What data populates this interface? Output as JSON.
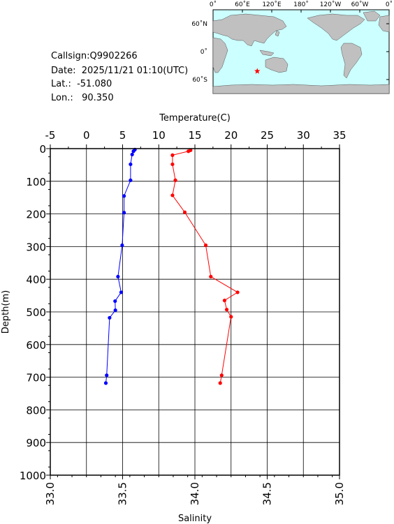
{
  "station": {
    "callsign": "Callsign:Q9902266",
    "date": "Date:  2025/11/21 01:10(UTC)",
    "lat": "Lat.:  -51.080",
    "lon": "Lon.:   90.350"
  },
  "map": {
    "top_labels": [
      "0˚",
      "60˚E",
      "120˚E",
      "180˚",
      "120˚W",
      "60˚W",
      "0˚"
    ],
    "lat_labels": [
      "60˚N",
      "0˚",
      "60˚S"
    ],
    "marker_lon": 90.35,
    "marker_lat": -51.08,
    "ocean_color": "#ccffff",
    "land_color": "#c0c0c0",
    "marker_color": "#ff0000"
  },
  "chart_data": [
    {
      "type": "line",
      "series_name": "Temperature",
      "xlabel": "Temperature(C)",
      "ylabel": "Depth(m)",
      "xlim": [
        -5,
        35
      ],
      "ylim": [
        0,
        1000
      ],
      "color": "#ff0000",
      "x_ticks": [
        "-5",
        "0",
        "5",
        "10",
        "15",
        "20",
        "25",
        "30",
        "35"
      ],
      "y_ticks": [
        "0",
        "100",
        "200",
        "300",
        "400",
        "500",
        "600",
        "700",
        "800",
        "900",
        "1000"
      ],
      "points": [
        {
          "x": 14.4,
          "y": 5
        },
        {
          "x": 14.1,
          "y": 8
        },
        {
          "x": 11.9,
          "y": 20
        },
        {
          "x": 11.9,
          "y": 48
        },
        {
          "x": 12.3,
          "y": 97
        },
        {
          "x": 11.9,
          "y": 143
        },
        {
          "x": 13.6,
          "y": 195
        },
        {
          "x": 16.5,
          "y": 296
        },
        {
          "x": 17.2,
          "y": 392
        },
        {
          "x": 20.9,
          "y": 440
        },
        {
          "x": 19.1,
          "y": 465
        },
        {
          "x": 19.4,
          "y": 493
        },
        {
          "x": 20.0,
          "y": 515
        },
        {
          "x": 18.7,
          "y": 694
        },
        {
          "x": 18.5,
          "y": 718
        }
      ]
    },
    {
      "type": "line",
      "series_name": "Salinity",
      "xlabel": "Salinity",
      "xlim": [
        33.0,
        35.0
      ],
      "color": "#0000ff",
      "x_ticks": [
        "33.0",
        "33.5",
        "34.0",
        "34.5",
        "35.0"
      ],
      "points": [
        {
          "x": 33.585,
          "y": 3
        },
        {
          "x": 33.575,
          "y": 8
        },
        {
          "x": 33.566,
          "y": 18
        },
        {
          "x": 33.555,
          "y": 48
        },
        {
          "x": 33.555,
          "y": 97
        },
        {
          "x": 33.51,
          "y": 145
        },
        {
          "x": 33.51,
          "y": 196
        },
        {
          "x": 33.497,
          "y": 296
        },
        {
          "x": 33.468,
          "y": 392
        },
        {
          "x": 33.49,
          "y": 440
        },
        {
          "x": 33.448,
          "y": 467
        },
        {
          "x": 33.45,
          "y": 495
        },
        {
          "x": 33.41,
          "y": 518
        },
        {
          "x": 33.39,
          "y": 694
        },
        {
          "x": 33.384,
          "y": 718
        }
      ]
    }
  ]
}
